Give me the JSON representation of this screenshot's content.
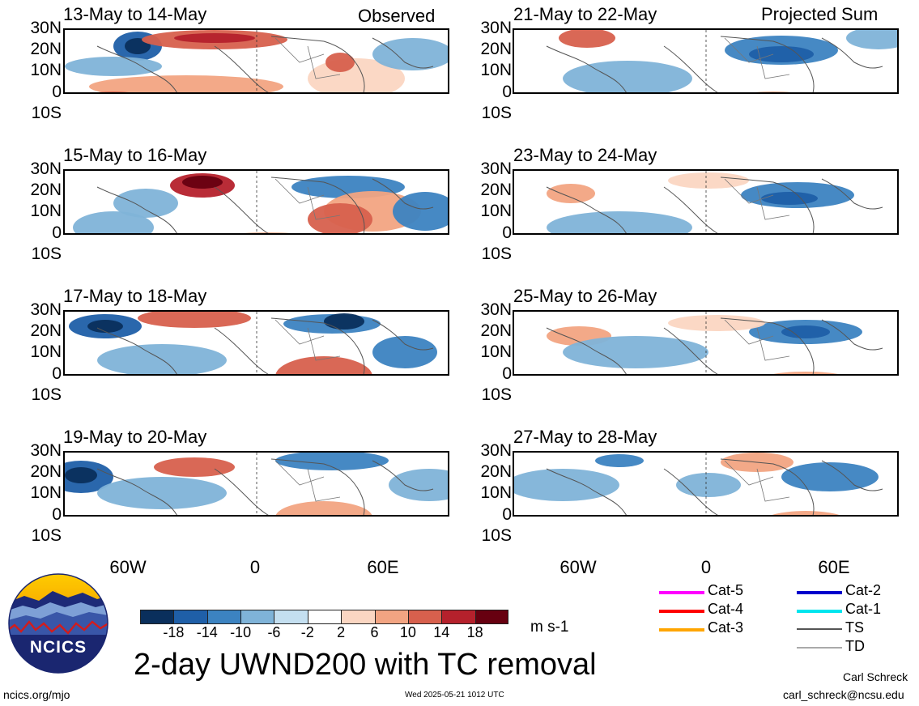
{
  "panels": {
    "left_header": "Observed",
    "right_header": "Projected Sum",
    "left_titles": [
      "13-May to 14-May",
      "15-May to 16-May",
      "17-May to 18-May",
      "19-May to 20-May"
    ],
    "right_titles": [
      "21-May to 22-May",
      "23-May to 24-May",
      "25-May to 26-May",
      "27-May to 28-May"
    ]
  },
  "axes": {
    "lat_labels": [
      "30N",
      "20N",
      "10N",
      "0",
      "10S"
    ],
    "lon_labels": [
      "60W",
      "0",
      "60E"
    ]
  },
  "colorbar": {
    "ticks": [
      "-18",
      "-14",
      "-10",
      "-6",
      "-2",
      "2",
      "6",
      "10",
      "14",
      "18"
    ],
    "units": "m s-1",
    "colors": [
      "#0a2f5c",
      "#1f5fa8",
      "#3c83c1",
      "#7fb3d8",
      "#c4dff0",
      "#ffffff",
      "#fbd6c2",
      "#f2a482",
      "#d7604d",
      "#b5212c",
      "#670010"
    ]
  },
  "legend": {
    "items": [
      {
        "label": "Cat-5",
        "color": "#ff00ff"
      },
      {
        "label": "Cat-4",
        "color": "#ff0000"
      },
      {
        "label": "Cat-3",
        "color": "#ffa500"
      },
      {
        "label": "Cat-2",
        "color": "#0000cc"
      },
      {
        "label": "Cat-1",
        "color": "#00e5ee"
      },
      {
        "label": "TS",
        "color": "#555555"
      },
      {
        "label": "TD",
        "color": "#aaaaaa"
      }
    ]
  },
  "logo": {
    "text": "NCICS"
  },
  "footer": {
    "title": "2-day UWND200 with TC removal",
    "url": "ncics.org/mjo",
    "timestamp": "Wed 2025-05-21 1012 UTC",
    "author": "Carl Schreck",
    "email": "carl_schreck@ncsu.edu"
  }
}
